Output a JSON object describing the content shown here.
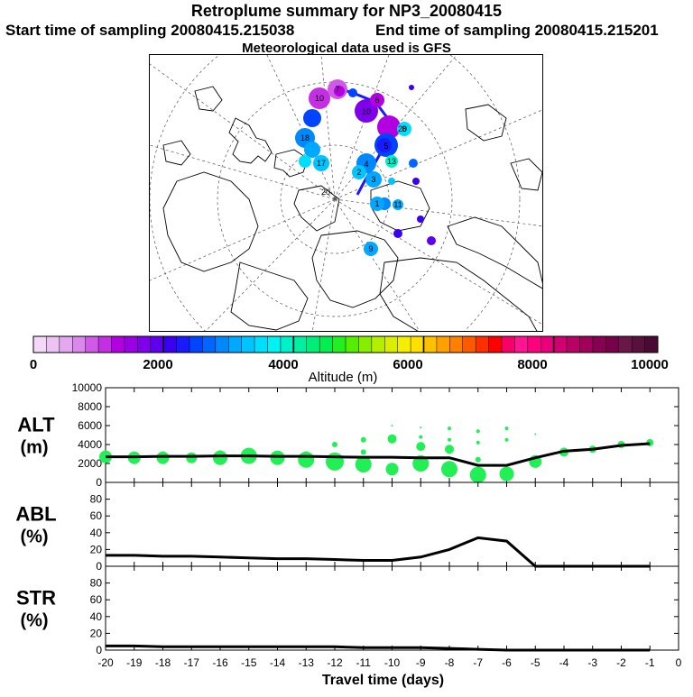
{
  "header": {
    "title": "Retroplume summary for NP3_20080415",
    "start_label": "Start time of sampling 20080415.215038",
    "end_label": "End time of sampling 20080415.215201",
    "met_label": "Meteorological data used is GFS"
  },
  "colors": {
    "plume": "#22ee55",
    "line": "#000000",
    "border": "#000000"
  },
  "colorbar": {
    "label": "Altitude (m)",
    "ticks": [
      "0",
      "2000",
      "4000",
      "6000",
      "8000",
      "10000"
    ],
    "colors": [
      "#f3d9f7",
      "#ecc3f3",
      "#e4a8ef",
      "#db88ec",
      "#d05ae7",
      "#c52fe3",
      "#b200e0",
      "#9b00e5",
      "#7f00ea",
      "#5e00ee",
      "#3a00f2",
      "#1a1aff",
      "#0044ff",
      "#0066ff",
      "#0088ff",
      "#00a8ff",
      "#00c4ff",
      "#00deff",
      "#00f2f2",
      "#00f0c8",
      "#00f0a0",
      "#00ee78",
      "#00ee50",
      "#22ee22",
      "#55ee00",
      "#88ee00",
      "#b4ee00",
      "#dcee00",
      "#f4ee00",
      "#ffe000",
      "#ffc000",
      "#ffa000",
      "#ff8000",
      "#ff5a00",
      "#ff3000",
      "#ff0000",
      "#f8006a",
      "#ff1493",
      "#ff007f",
      "#e8007a",
      "#d00070",
      "#b80066",
      "#a0005c",
      "#880052",
      "#780048",
      "#681848",
      "#58103c",
      "#4a0a33"
    ]
  },
  "map": {
    "cluster_labels": [
      "10",
      "10",
      "20",
      "20",
      "18",
      "17",
      "13",
      "11",
      "9",
      "8",
      "7",
      "6",
      "5",
      "4",
      "3",
      "2",
      "1"
    ]
  },
  "chart_data": [
    {
      "type": "line",
      "panel": "ALT",
      "ylabel": "ALT",
      "yunit": "(m)",
      "ylim": [
        0,
        10000
      ],
      "yticks": [
        "0",
        "2000",
        "4000",
        "6000",
        "8000",
        "10000"
      ],
      "xlim": [
        -20,
        0
      ],
      "x": [
        -20,
        -19,
        -18,
        -17,
        -16,
        -15,
        -14,
        -13,
        -12,
        -11,
        -10,
        -9,
        -8,
        -7,
        -6,
        -5,
        -4,
        -3,
        -2,
        -1
      ],
      "values": [
        2700,
        2700,
        2750,
        2750,
        2800,
        2800,
        2750,
        2750,
        2700,
        2650,
        2650,
        2600,
        2600,
        1800,
        1800,
        2600,
        3300,
        3500,
        3900,
        4100
      ],
      "bubbles": [
        {
          "x": -20,
          "y": 2700,
          "size": 7
        },
        {
          "x": -19,
          "y": 2600,
          "size": 7
        },
        {
          "x": -18,
          "y": 2600,
          "size": 7
        },
        {
          "x": -17,
          "y": 2600,
          "size": 6
        },
        {
          "x": -16,
          "y": 2600,
          "size": 8
        },
        {
          "x": -15,
          "y": 2800,
          "size": 9
        },
        {
          "x": -14,
          "y": 2600,
          "size": 8
        },
        {
          "x": -13,
          "y": 2400,
          "size": 9
        },
        {
          "x": -12,
          "y": 2200,
          "size": 10
        },
        {
          "x": -11,
          "y": 1900,
          "size": 9
        },
        {
          "x": -10,
          "y": 1400,
          "size": 7
        },
        {
          "x": -9,
          "y": 2000,
          "size": 9
        },
        {
          "x": -8,
          "y": 1400,
          "size": 9
        },
        {
          "x": -7,
          "y": 800,
          "size": 9
        },
        {
          "x": -6,
          "y": 900,
          "size": 8
        },
        {
          "x": -5,
          "y": 2200,
          "size": 7
        },
        {
          "x": -4,
          "y": 3200,
          "size": 5
        },
        {
          "x": -3,
          "y": 3500,
          "size": 4
        },
        {
          "x": -2,
          "y": 4000,
          "size": 4
        },
        {
          "x": -1,
          "y": 4200,
          "size": 4
        },
        {
          "x": -20,
          "y": 2900,
          "size": 3
        },
        {
          "x": -18,
          "y": 3100,
          "size": 2
        },
        {
          "x": -16,
          "y": 3200,
          "size": 2
        },
        {
          "x": -15,
          "y": 3300,
          "size": 2
        },
        {
          "x": -13,
          "y": 3000,
          "size": 3
        },
        {
          "x": -12,
          "y": 4000,
          "size": 3
        },
        {
          "x": -11,
          "y": 3200,
          "size": 3
        },
        {
          "x": -11,
          "y": 4500,
          "size": 3
        },
        {
          "x": -10,
          "y": 4600,
          "size": 5
        },
        {
          "x": -10,
          "y": 6000,
          "size": 1
        },
        {
          "x": -9,
          "y": 3800,
          "size": 5
        },
        {
          "x": -9,
          "y": 4800,
          "size": 2
        },
        {
          "x": -9,
          "y": 5800,
          "size": 1
        },
        {
          "x": -8,
          "y": 3500,
          "size": 5
        },
        {
          "x": -8,
          "y": 4500,
          "size": 2
        },
        {
          "x": -8,
          "y": 5700,
          "size": 2
        },
        {
          "x": -7,
          "y": 2400,
          "size": 3
        },
        {
          "x": -7,
          "y": 4200,
          "size": 2
        },
        {
          "x": -7,
          "y": 5400,
          "size": 2
        },
        {
          "x": -6,
          "y": 4500,
          "size": 2
        },
        {
          "x": -6,
          "y": 5700,
          "size": 2
        },
        {
          "x": -5,
          "y": 5100,
          "size": 1
        }
      ]
    },
    {
      "type": "line",
      "panel": "ABL",
      "ylabel": "ABL",
      "yunit": "(%)",
      "ylim": [
        0,
        100
      ],
      "yticks": [
        "0",
        "20",
        "40",
        "60",
        "80"
      ],
      "xlim": [
        -20,
        0
      ],
      "x": [
        -20,
        -19,
        -18,
        -17,
        -16,
        -15,
        -14,
        -13,
        -12,
        -11,
        -10,
        -9,
        -8,
        -7,
        -6,
        -5,
        -4,
        -3,
        -2,
        -1
      ],
      "values": [
        13,
        13,
        12,
        12,
        11,
        10,
        9,
        9,
        8,
        7,
        7,
        11,
        20,
        34,
        30,
        0,
        0,
        0,
        0,
        0
      ]
    },
    {
      "type": "line",
      "panel": "STR",
      "ylabel": "STR",
      "yunit": "(%)",
      "ylim": [
        0,
        100
      ],
      "yticks": [
        "0",
        "20",
        "40",
        "60",
        "80"
      ],
      "xlim": [
        -20,
        0
      ],
      "xlabel": "Travel time (days)",
      "xticks": [
        "-20",
        "-19",
        "-18",
        "-17",
        "-16",
        "-15",
        "-14",
        "-13",
        "-12",
        "-11",
        "-10",
        "-9",
        "-8",
        "-7",
        "-6",
        "-5",
        "-4",
        "-3",
        "-2",
        "-1",
        "0"
      ],
      "x": [
        -20,
        -19,
        -18,
        -17,
        -16,
        -15,
        -14,
        -13,
        -12,
        -11,
        -10,
        -9,
        -8,
        -7,
        -6,
        -5,
        -4,
        -3,
        -2,
        -1
      ],
      "values": [
        5,
        5,
        4,
        4,
        4,
        4,
        4,
        4,
        4,
        3,
        3,
        3,
        2,
        1,
        0,
        0,
        0,
        0,
        0,
        0
      ]
    }
  ]
}
